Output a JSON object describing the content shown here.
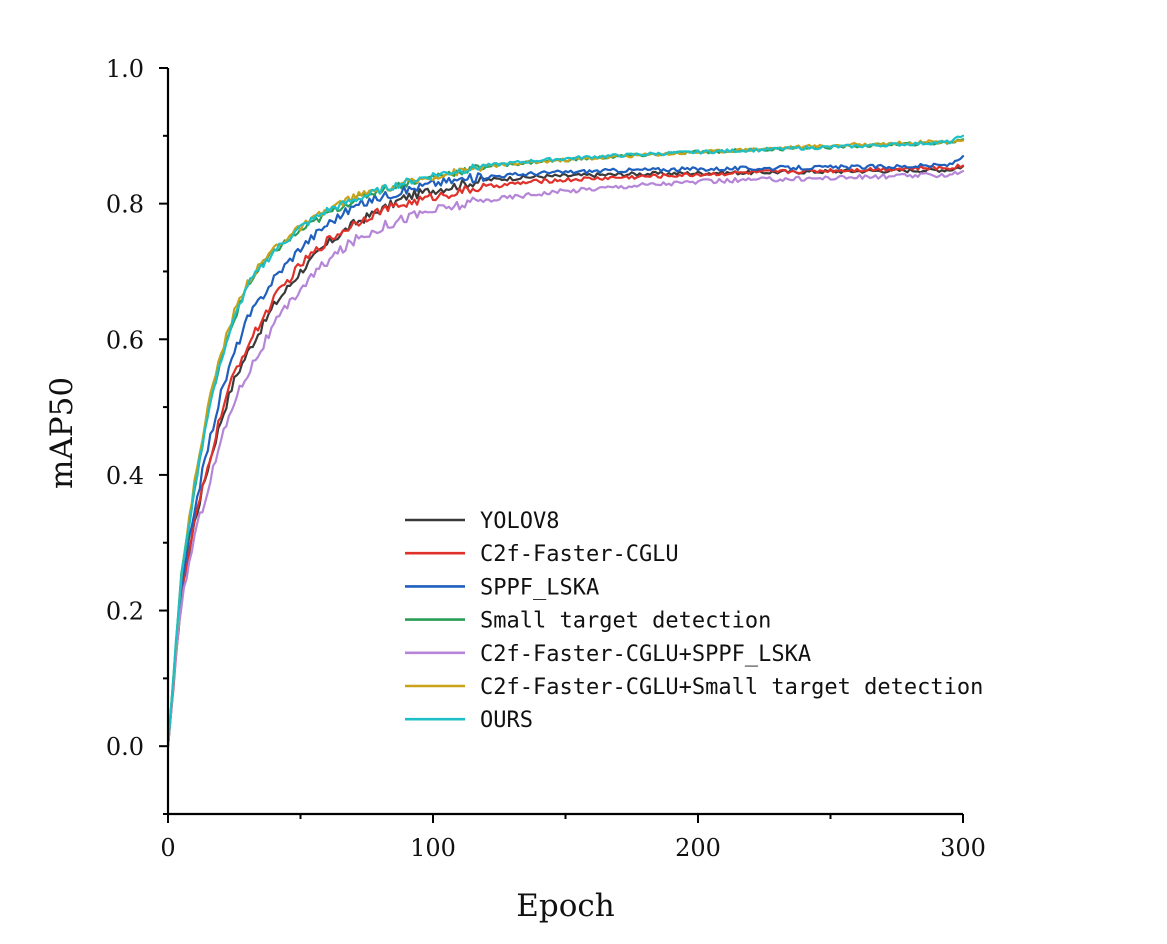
{
  "chart_data": {
    "type": "line",
    "title": "",
    "xlabel": "Epoch",
    "ylabel": "mAP50",
    "xlim": [
      0,
      300
    ],
    "ylim": [
      -0.1,
      1.0
    ],
    "x_ticks": [
      0,
      100,
      200,
      300
    ],
    "x_tick_labels": [
      "0",
      "100",
      "200",
      "300"
    ],
    "y_ticks": [
      0.0,
      0.2,
      0.4,
      0.6,
      0.8,
      1.0
    ],
    "y_tick_labels": [
      "0.0",
      "0.2",
      "0.4",
      "0.6",
      "0.8",
      "1.0"
    ],
    "grid": false,
    "legend_position": "center-right",
    "x": [
      0,
      5,
      10,
      15,
      20,
      25,
      30,
      40,
      50,
      60,
      70,
      80,
      90,
      100,
      120,
      140,
      160,
      180,
      200,
      220,
      240,
      260,
      280,
      295,
      300
    ],
    "series": [
      {
        "name": "YOLOV8",
        "color": "#3a3a3a",
        "noise": 0.006,
        "values": [
          0.0,
          0.22,
          0.33,
          0.41,
          0.48,
          0.54,
          0.58,
          0.65,
          0.7,
          0.74,
          0.77,
          0.79,
          0.81,
          0.82,
          0.835,
          0.84,
          0.842,
          0.844,
          0.845,
          0.846,
          0.847,
          0.848,
          0.849,
          0.85,
          0.855
        ]
      },
      {
        "name": "C2f-Faster-CGLU",
        "color": "#e0302a",
        "noise": 0.006,
        "values": [
          0.0,
          0.22,
          0.33,
          0.41,
          0.49,
          0.55,
          0.59,
          0.66,
          0.71,
          0.745,
          0.77,
          0.79,
          0.8,
          0.81,
          0.825,
          0.833,
          0.837,
          0.84,
          0.843,
          0.846,
          0.848,
          0.85,
          0.852,
          0.853,
          0.856
        ]
      },
      {
        "name": "SPPF_LSKA",
        "color": "#1f5fbd",
        "noise": 0.006,
        "values": [
          0.0,
          0.23,
          0.35,
          0.44,
          0.52,
          0.58,
          0.63,
          0.69,
          0.735,
          0.77,
          0.795,
          0.81,
          0.82,
          0.83,
          0.84,
          0.845,
          0.848,
          0.85,
          0.851,
          0.852,
          0.853,
          0.854,
          0.855,
          0.857,
          0.87
        ]
      },
      {
        "name": "Small target detection",
        "color": "#2a9d55",
        "noise": 0.005,
        "values": [
          0.0,
          0.25,
          0.38,
          0.49,
          0.57,
          0.63,
          0.68,
          0.73,
          0.76,
          0.785,
          0.805,
          0.82,
          0.83,
          0.84,
          0.855,
          0.862,
          0.867,
          0.872,
          0.876,
          0.879,
          0.882,
          0.885,
          0.888,
          0.89,
          0.895
        ]
      },
      {
        "name": "C2f-Faster-CGLU+SPPF_LSKA",
        "color": "#b586d8",
        "noise": 0.007,
        "values": [
          0.0,
          0.21,
          0.31,
          0.38,
          0.45,
          0.51,
          0.55,
          0.62,
          0.675,
          0.715,
          0.745,
          0.765,
          0.78,
          0.79,
          0.805,
          0.815,
          0.822,
          0.828,
          0.832,
          0.835,
          0.837,
          0.839,
          0.841,
          0.843,
          0.848
        ]
      },
      {
        "name": "C2f-Faster-CGLU+Small target detection",
        "color": "#c9a21a",
        "noise": 0.005,
        "values": [
          0.0,
          0.25,
          0.39,
          0.5,
          0.58,
          0.64,
          0.685,
          0.735,
          0.765,
          0.79,
          0.81,
          0.82,
          0.83,
          0.84,
          0.855,
          0.862,
          0.867,
          0.872,
          0.876,
          0.88,
          0.884,
          0.887,
          0.89,
          0.892,
          0.893
        ]
      },
      {
        "name": "OURS",
        "color": "#1fbfc7",
        "noise": 0.005,
        "values": [
          0.0,
          0.25,
          0.38,
          0.49,
          0.57,
          0.63,
          0.68,
          0.73,
          0.765,
          0.79,
          0.805,
          0.82,
          0.832,
          0.842,
          0.856,
          0.864,
          0.869,
          0.873,
          0.876,
          0.879,
          0.882,
          0.885,
          0.888,
          0.891,
          0.9
        ]
      }
    ]
  }
}
